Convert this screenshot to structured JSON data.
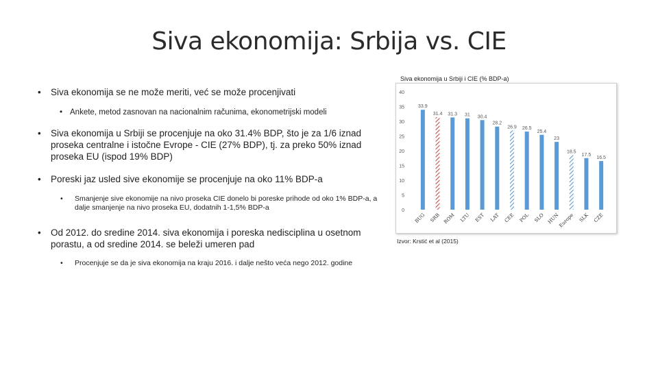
{
  "slide": {
    "title": "Siva ekonomija: Srbija vs. CIE"
  },
  "bullets": [
    {
      "level": 1,
      "text": "Siva ekonomija se ne može meriti, već se može procenjivati"
    },
    {
      "level": 2,
      "text": "Ankete, metod zasnovan na nacionalnim računima, ekonometrijski modeli"
    },
    {
      "level": 1,
      "text": "Siva ekonomija u Srbiji se procenjuje na oko 31.4% BDP, što je za 1/6 iznad proseka centralne i istočne Evrope - CIE (27% BDP), tj. za preko 50% iznad proseka EU (ispod 19% BDP)"
    },
    {
      "level": 1,
      "text": "Poreski jaz usled sive ekonomije se procenjuje na oko 11% BDP-a"
    },
    {
      "level": 3,
      "text": "Smanjenje sive ekonomije na nivo proseka CIE donelo bi poreske prihode od oko 1% BDP-a, a dalje smanjenje na nivo proseka EU, dodatnih 1-1,5% BDP-a"
    },
    {
      "level": 1,
      "text": "Od 2012. do sredine 2014. siva ekonomija i poreska nedisciplina u osetnom porastu, a od sredine 2014. se beleži umeren pad"
    },
    {
      "level": 3,
      "text": "Procenjuje se da je siva ekonomija na kraju 2016. i dalje nešto veća nego 2012. godine"
    }
  ],
  "source": "Izvor: Krstić et al (2015)",
  "colors": {
    "bar": "#5b9bd5",
    "highlight_serbia": "#c0504d",
    "highlight_cie": "#5b9bd5",
    "tick_text": "#555555"
  },
  "chart_data": {
    "type": "bar",
    "title": "Siva ekonomija u Srbiji i CIE (% BDP-a)",
    "categories": [
      "BUG",
      "SRB",
      "ROM",
      "LTU",
      "EST",
      "LAT",
      "CEE",
      "POL",
      "SLO",
      "HUN",
      "Europe",
      "SLK",
      "CZE"
    ],
    "values": [
      33.9,
      31.4,
      31.3,
      31,
      30.4,
      28.2,
      26.9,
      26.5,
      25.4,
      23,
      18.5,
      17.5,
      16.5
    ],
    "value_labels": [
      "33.9",
      "31.4",
      "31.3",
      "31",
      "30.4",
      "28.2",
      "26.9",
      "26.5",
      "25.4",
      "23",
      "18.5",
      "17.5",
      "16.5"
    ],
    "bar_styles": [
      "solid",
      "hatched-red",
      "solid",
      "solid",
      "solid",
      "solid",
      "hatched-blue",
      "solid",
      "solid",
      "solid",
      "hatched-blue",
      "solid",
      "solid"
    ],
    "ylim": [
      0,
      40
    ],
    "yticks": [
      "0",
      "5",
      "10",
      "15",
      "20",
      "25",
      "30",
      "35",
      "40"
    ],
    "xlabel": "",
    "ylabel": "",
    "grid": false,
    "legend": "none"
  }
}
